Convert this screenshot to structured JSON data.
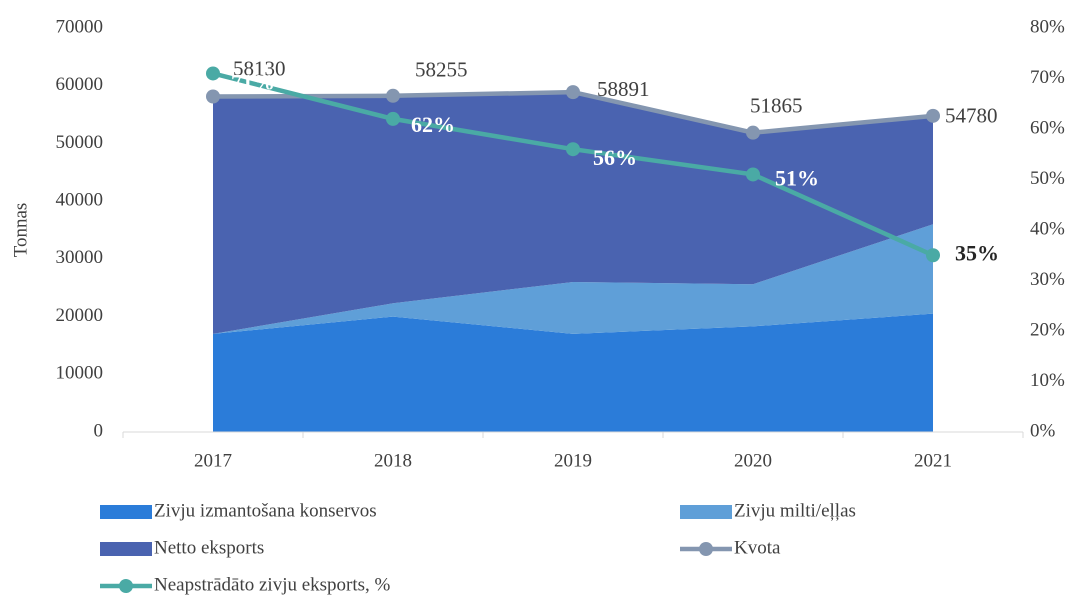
{
  "chart_data": {
    "type": "stacked_area_line",
    "y_label": "Tonnas",
    "categories": [
      "2017",
      "2018",
      "2019",
      "2020",
      "2021"
    ],
    "series": [
      {
        "name": "Zivju izmantošana konservos",
        "color": "#2b7cd9",
        "kind": "area",
        "values": [
          17000,
          20000,
          17000,
          18300,
          20500
        ]
      },
      {
        "name": "Zivju milti/eļļas",
        "color": "#5f9fd8",
        "kind": "area",
        "values": [
          0,
          2300,
          9000,
          7300,
          15500
        ]
      },
      {
        "name": "Netto eksports",
        "color": "#4a63b0",
        "kind": "area",
        "values": [
          41130,
          35955,
          32891,
          26265,
          18780
        ]
      },
      {
        "name": "Kvota",
        "color": "#8496b0",
        "kind": "line",
        "values": [
          58130,
          58255,
          58891,
          51865,
          54780
        ]
      },
      {
        "name": "Neapstrādāto zivju eksports, %",
        "color": "#4aaaa5",
        "kind": "line",
        "axis": "y2",
        "values": [
          71,
          62,
          56,
          51,
          35
        ],
        "value_labels": [
          "71%",
          "62%",
          "56%",
          "51%",
          "35%"
        ]
      }
    ],
    "ylim": [
      0,
      70000
    ],
    "yticks": [
      0,
      10000,
      20000,
      30000,
      40000,
      50000,
      60000,
      70000
    ],
    "y2lim": [
      0,
      80
    ],
    "y2ticks": [
      {
        "value": 0,
        "label": "0%"
      },
      {
        "value": 10,
        "label": "10%"
      },
      {
        "value": 20,
        "label": "20%"
      },
      {
        "value": 30,
        "label": "30%"
      },
      {
        "value": 40,
        "label": "40%"
      },
      {
        "value": 50,
        "label": "50%"
      },
      {
        "value": 60,
        "label": "60%"
      },
      {
        "value": 70,
        "label": "70%"
      },
      {
        "value": 80,
        "label": "80%"
      }
    ],
    "grid": false,
    "legend": "bottom"
  }
}
